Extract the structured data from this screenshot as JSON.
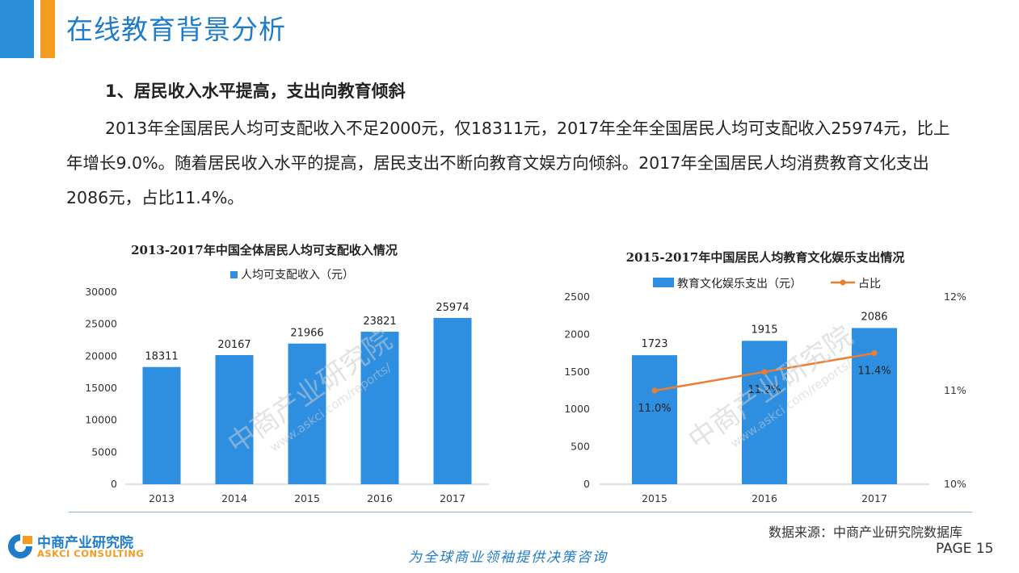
{
  "header": {
    "title": "在线教育背景分析"
  },
  "section": {
    "title": "1、居民收入水平提高，支出向教育倾斜",
    "paragraph": "2013年全国居民人均可支配收入不足2000元，仅18311元，2017年全年全国居民人均可支配收入25974元，比上年增长9.0%。随着居民收入水平的提高，居民支出不断向教育文娱方向倾斜。2017年全国居民人均消费教育文化支出2086元，占比11.4%。"
  },
  "chart_data": [
    {
      "type": "bar",
      "title": "2013-2017年中国全体居民人均可支配收入情况",
      "categories": [
        "2013",
        "2014",
        "2015",
        "2016",
        "2017"
      ],
      "series": [
        {
          "name": "人均可支配收入（元）",
          "values": [
            18311,
            20167,
            21966,
            23821,
            25974
          ],
          "color": "#2e8fe0"
        }
      ],
      "ylim": [
        0,
        30000
      ],
      "yticks": [
        "0",
        "5000",
        "10000",
        "15000",
        "20000",
        "25000",
        "30000"
      ],
      "legend_position": "top",
      "grid": false
    },
    {
      "type": "bar",
      "title": "2015-2017年中国居民人均教育文化娱乐支出情况",
      "categories": [
        "2015",
        "2016",
        "2017"
      ],
      "series": [
        {
          "name": "教育文化娱乐支出（元）",
          "values": [
            1723,
            1915,
            2086
          ],
          "color": "#2e8fe0",
          "axis": "left"
        },
        {
          "name": "占比",
          "type": "line",
          "values": [
            11.0,
            11.2,
            11.4
          ],
          "labels": [
            "11.0%",
            "11.2%",
            "11.4%"
          ],
          "color": "#ed7d31",
          "axis": "right"
        }
      ],
      "ylim": [
        0,
        2500
      ],
      "yticks": [
        "0",
        "500",
        "1000",
        "1500",
        "2000",
        "2500"
      ],
      "y2lim": [
        10,
        12
      ],
      "y2ticks": [
        "10%",
        "11%",
        "12%"
      ],
      "legend_position": "top",
      "grid": false
    }
  ],
  "watermark": {
    "cn": "中商产业研究院",
    "url": "www.askci.com/reports/"
  },
  "source": "数据来源：中商产业研究院数据库",
  "footer": {
    "logo_cn": "中商产业研究院",
    "logo_en": "ASKCI CONSULTING",
    "slogan": "为全球商业领袖提供决策咨询",
    "page_label": "PAGE  15"
  },
  "colors": {
    "blue": "#1f7cc9",
    "orange": "#f39c21",
    "bar": "#2e8fe0",
    "line": "#ed7d31"
  }
}
